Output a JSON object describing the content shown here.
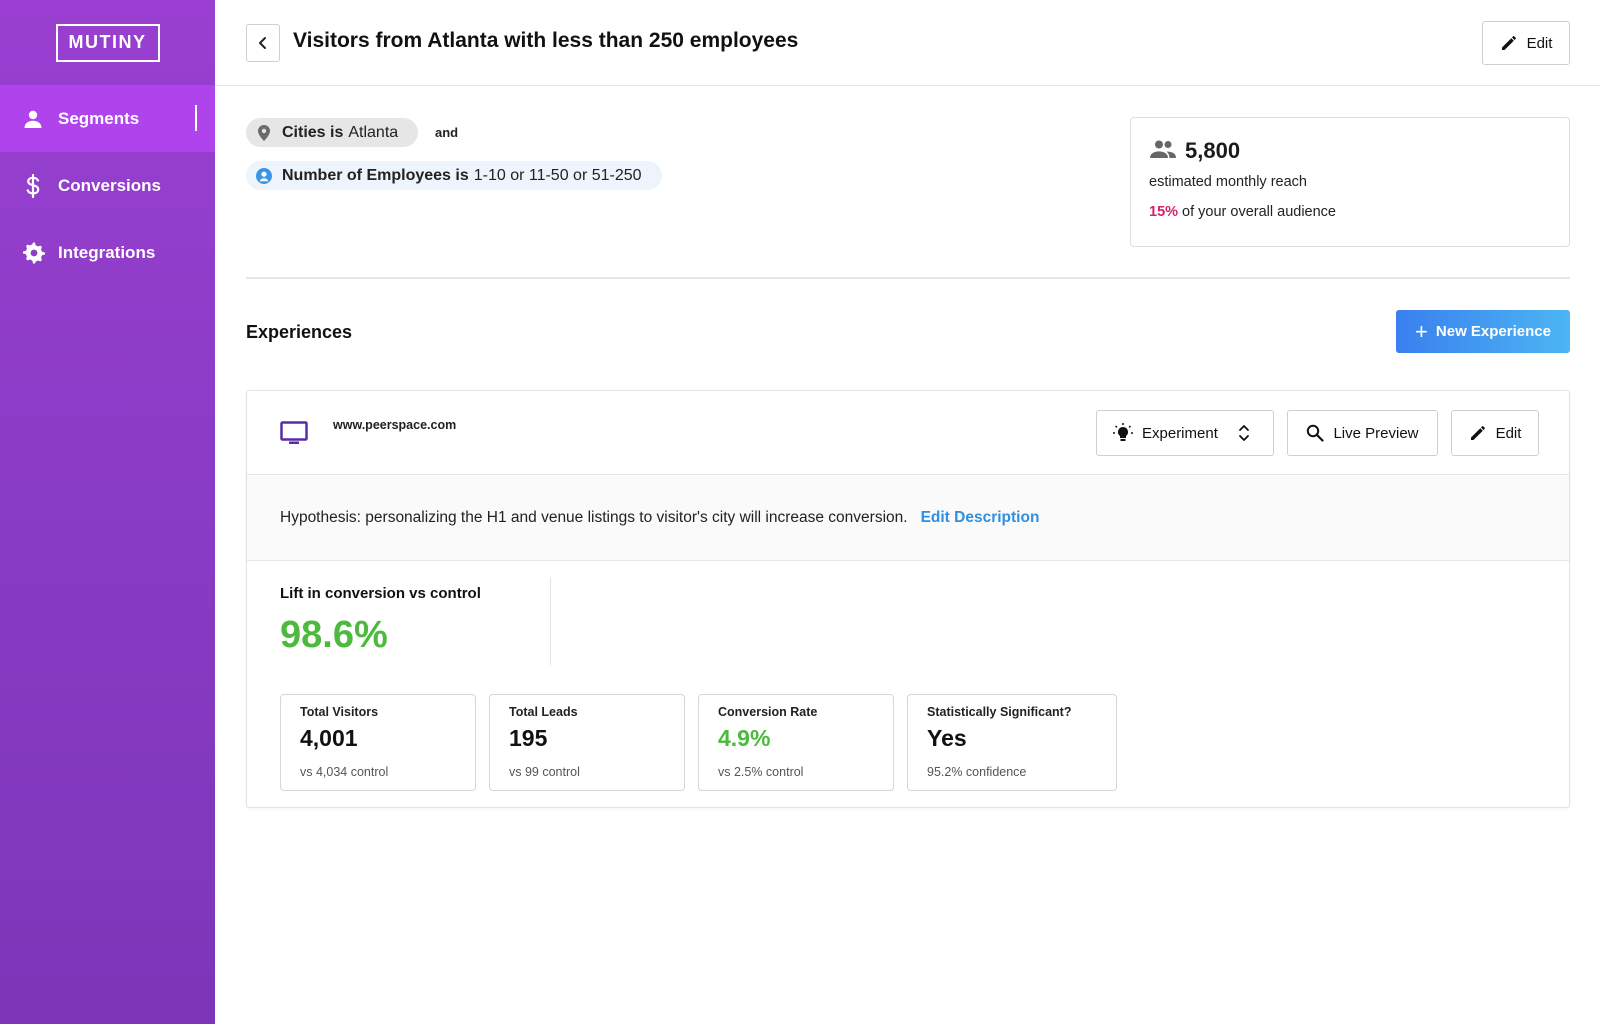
{
  "brand": {
    "logo": "MUTINY"
  },
  "sidebar": {
    "items": [
      {
        "label": "Segments",
        "icon": "person-icon",
        "active": true
      },
      {
        "label": "Conversions",
        "icon": "dollar-icon",
        "active": false
      },
      {
        "label": "Integrations",
        "icon": "gear-icon",
        "active": false
      }
    ]
  },
  "header": {
    "title": "Visitors from Atlanta with less than 250 employees",
    "edit_label": "Edit"
  },
  "filters": {
    "city": {
      "field": "Cities is",
      "value": "Atlanta"
    },
    "joiner": "and",
    "employees": {
      "field": "Number of Employees is",
      "value": "1-10 or 11-50 or 51-250"
    }
  },
  "reach": {
    "number": "5,800",
    "label": "estimated monthly reach",
    "percent": "15%",
    "percent_label": "of your overall audience",
    "accent": "#d4226b"
  },
  "experiences": {
    "title": "Experiences",
    "new_button": "New Experience",
    "card": {
      "site": "www.peerspace.com",
      "type_label": "Experiment",
      "preview_label": "Live Preview",
      "edit_label": "Edit",
      "hypothesis": "Hypothesis: personalizing the H1 and venue listings to visitor's city will increase conversion.",
      "edit_description": "Edit Description",
      "lift_label": "Lift in conversion vs control",
      "lift_value": "98.6%",
      "stats": [
        {
          "label": "Total Visitors",
          "value": "4,001",
          "sub": "vs 4,034 control"
        },
        {
          "label": "Total Leads",
          "value": "195",
          "sub": "vs 99 control"
        },
        {
          "label": "Conversion Rate",
          "value": "4.9%",
          "sub": "vs 2.5% control"
        },
        {
          "label": "Statistically Significant?",
          "value": "Yes",
          "sub": "95.2% confidence"
        }
      ]
    }
  }
}
